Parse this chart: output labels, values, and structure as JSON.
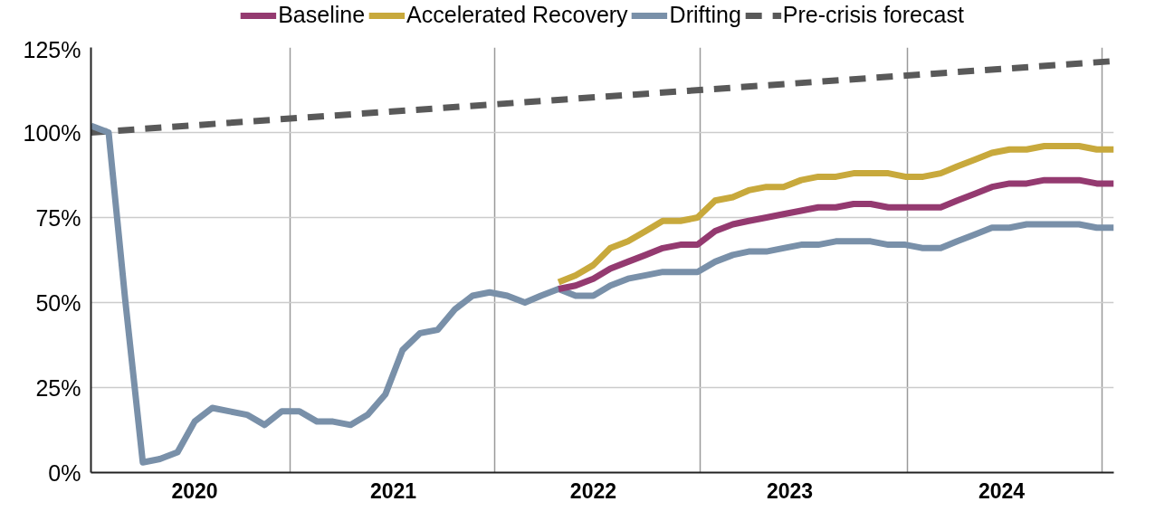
{
  "chart_data": {
    "type": "line",
    "x": [
      "2020-01",
      "2020-02",
      "2020-03",
      "2020-04",
      "2020-05",
      "2020-06",
      "2020-07",
      "2020-08",
      "2020-09",
      "2020-10",
      "2020-11",
      "2020-12",
      "2021-01",
      "2021-02",
      "2021-03",
      "2021-04",
      "2021-05",
      "2021-06",
      "2021-07",
      "2021-08",
      "2021-09",
      "2021-10",
      "2021-11",
      "2021-12",
      "2022-01",
      "2022-02",
      "2022-03",
      "2022-04",
      "2022-05",
      "2022-06",
      "2022-07",
      "2022-08",
      "2022-09",
      "2022-10",
      "2022-11",
      "2022-12",
      "2023-01",
      "2023-02",
      "2023-03",
      "2023-04",
      "2023-05",
      "2023-06",
      "2023-07",
      "2023-08",
      "2023-09",
      "2023-10",
      "2023-11",
      "2023-12",
      "2024-01",
      "2024-02",
      "2024-03",
      "2024-04",
      "2024-05",
      "2024-06",
      "2024-07",
      "2024-08",
      "2024-09",
      "2024-10",
      "2024-11",
      "2024-12"
    ],
    "series": [
      {
        "name": "Baseline",
        "color": "#943a70",
        "values": [
          null,
          null,
          null,
          null,
          null,
          null,
          null,
          null,
          null,
          null,
          null,
          null,
          null,
          null,
          null,
          null,
          null,
          null,
          null,
          null,
          null,
          null,
          null,
          null,
          null,
          null,
          null,
          54,
          55,
          57,
          60,
          62,
          64,
          66,
          67,
          67,
          71,
          73,
          74,
          75,
          76,
          77,
          78,
          78,
          79,
          79,
          78,
          78,
          78,
          78,
          80,
          82,
          84,
          85,
          85,
          86,
          86,
          86,
          85,
          85
        ]
      },
      {
        "name": "Accelerated Recovery",
        "color": "#c8a93c",
        "values": [
          null,
          null,
          null,
          null,
          null,
          null,
          null,
          null,
          null,
          null,
          null,
          null,
          null,
          null,
          null,
          null,
          null,
          null,
          null,
          null,
          null,
          null,
          null,
          null,
          null,
          null,
          null,
          56,
          58,
          61,
          66,
          68,
          71,
          74,
          74,
          75,
          80,
          81,
          83,
          84,
          84,
          86,
          87,
          87,
          88,
          88,
          88,
          87,
          87,
          88,
          90,
          92,
          94,
          95,
          95,
          96,
          96,
          96,
          95,
          95
        ]
      },
      {
        "name": "Drifting",
        "color": "#7990a9",
        "values": [
          102,
          100,
          51,
          3,
          4,
          6,
          15,
          19,
          18,
          17,
          14,
          18,
          18,
          15,
          15,
          14,
          17,
          23,
          36,
          41,
          42,
          48,
          52,
          53,
          52,
          50,
          52,
          54,
          52,
          52,
          55,
          57,
          58,
          59,
          59,
          59,
          62,
          64,
          65,
          65,
          66,
          67,
          67,
          68,
          68,
          68,
          67,
          67,
          66,
          66,
          68,
          70,
          72,
          72,
          73,
          73,
          73,
          73,
          72,
          72
        ]
      },
      {
        "name": "Pre-crisis forecast",
        "color": "#595959",
        "line_style": "dashed",
        "x": [
          "2020-01",
          "2024-12"
        ],
        "values": [
          100,
          121
        ]
      }
    ],
    "xlim": [
      "2020-01",
      "2024-12"
    ],
    "xticks": [
      {
        "value": "2020-12-15",
        "label": null
      },
      {
        "value": "2021-12-10",
        "label": null
      },
      {
        "value": "2022-12-05",
        "label": null
      },
      {
        "value": "2023-12-05",
        "label": null
      },
      {
        "value": "2024-11-10",
        "label": null
      },
      {
        "value": "2020-07",
        "label": "2020"
      },
      {
        "value": "2021-06-15",
        "label": "2021"
      },
      {
        "value": "2022-06",
        "label": "2022"
      },
      {
        "value": "2023-05-12",
        "label": "2023"
      },
      {
        "value": "2024-05-18",
        "label": "2024"
      }
    ],
    "ylim": [
      0,
      125
    ],
    "yticks": [
      {
        "value": 0,
        "label": "0%"
      },
      {
        "value": 25,
        "label": "25%"
      },
      {
        "value": 50,
        "label": "50%"
      },
      {
        "value": 75,
        "label": "75%"
      },
      {
        "value": 100,
        "label": "100%"
      },
      {
        "value": 125,
        "label": "125%"
      }
    ],
    "grid": true,
    "legend": "top",
    "line_style": "solid"
  }
}
